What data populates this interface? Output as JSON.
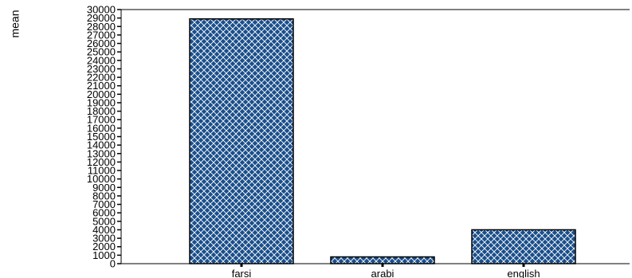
{
  "chart_data": {
    "type": "bar",
    "categories": [
      "farsi",
      "arabi",
      "english"
    ],
    "values": [
      28900,
      800,
      4000
    ],
    "title": "",
    "xlabel": "",
    "ylabel": "mean",
    "ylim": [
      0,
      30000
    ],
    "yticks": [
      0,
      1000,
      2000,
      3000,
      4000,
      5000,
      6000,
      7000,
      8000,
      9000,
      10000,
      11000,
      12000,
      13000,
      14000,
      15000,
      16000,
      17000,
      18000,
      19000,
      20000,
      21000,
      22000,
      23000,
      24000,
      25000,
      26000,
      27000,
      28000,
      29000,
      30000
    ],
    "grid": false,
    "legend": "none",
    "bar_fill": "#1a4f8b",
    "bar_pattern": "white crosshatch",
    "bar_stroke": "#000000"
  }
}
